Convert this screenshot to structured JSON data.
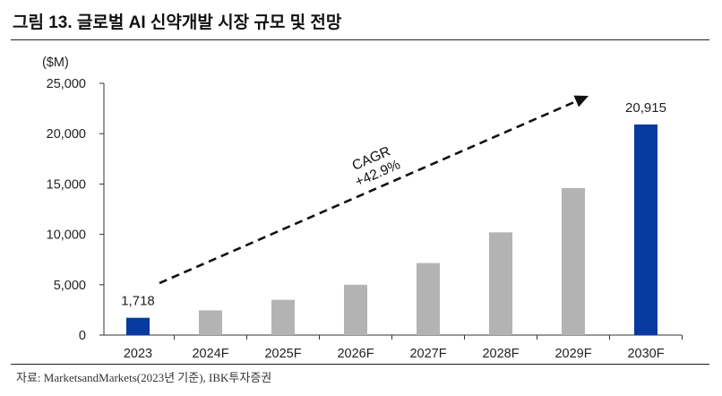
{
  "title": "그림 13. 글로벌 AI 신약개발 시장 규모 및 전망",
  "source": "자료: MarketsandMarkets(2023년 기준), IBK투자증권",
  "chart_data": {
    "type": "bar",
    "unit_label": "($M)",
    "categories": [
      "2023",
      "2024F",
      "2025F",
      "2026F",
      "2027F",
      "2028F",
      "2029F",
      "2030F"
    ],
    "values": [
      1718,
      2450,
      3500,
      5000,
      7150,
      10200,
      14600,
      20915
    ],
    "data_labels": [
      {
        "category": "2023",
        "text": "1,718"
      },
      {
        "category": "2030F",
        "text": "20,915"
      }
    ],
    "highlighted_categories": [
      "2023",
      "2030F"
    ],
    "colors": {
      "highlight": "#063a9c",
      "normal": "#b3b3b3",
      "arrow": "#111111"
    },
    "ylim": [
      0,
      25000
    ],
    "yticks": [
      0,
      5000,
      10000,
      15000,
      20000,
      25000
    ],
    "ytick_labels": [
      "0",
      "5,000",
      "10,000",
      "15,000",
      "20,000",
      "25,000"
    ],
    "annotation": {
      "line1": "CAGR",
      "line2": "+42.9%",
      "style": "dashed arrow"
    },
    "grid": false,
    "legend": "none"
  }
}
